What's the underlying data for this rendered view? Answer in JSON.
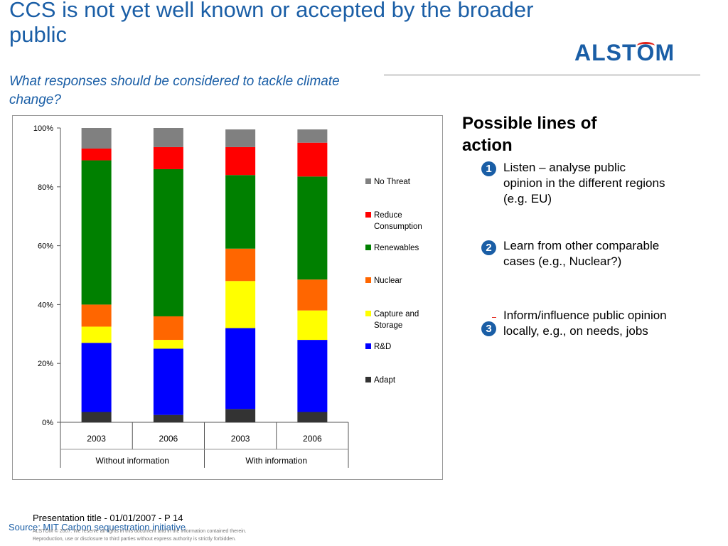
{
  "slide": {
    "title": "CCS is not yet well known or accepted by the broader public",
    "subtitle": "What responses should be considered to tackle climate change?",
    "logo_text": "ALSTOM",
    "accent_color": "#1a5ea6",
    "logo_arc_color": "#e2231a"
  },
  "side_panel": {
    "heading": "Possible lines of action",
    "actions": [
      {
        "number": "1",
        "text": "Listen – analyse public opinion in the different regions (e.g. EU)"
      },
      {
        "number": "2",
        "text": "Learn from other comparable cases (e.g., Nuclear?)"
      },
      {
        "number": "3",
        "text": "Inform/influence public opinion locally, e.g., on needs, jobs"
      }
    ]
  },
  "footer": {
    "presentation": "Presentation title - 01/01/2007 - P 14",
    "source": "Source: MIT Carbon sequestration initiative",
    "legal_line1": "ALSTOM © 2007. We reserve all rights in this document and in the information contained therein.",
    "legal_line2": "Reproduction, use or disclosure to third parties without express authority is strictly forbidden."
  },
  "chart_data": {
    "type": "bar",
    "stacked": true,
    "title": "",
    "xlabel": "",
    "ylabel": "",
    "ylim": [
      0,
      100
    ],
    "y_ticks": [
      "0%",
      "20%",
      "40%",
      "60%",
      "80%",
      "100%"
    ],
    "categories": [
      "2003",
      "2006",
      "2003",
      "2006"
    ],
    "groups": [
      {
        "label": "Without information",
        "categories": [
          0,
          1
        ]
      },
      {
        "label": "With information",
        "categories": [
          2,
          3
        ]
      }
    ],
    "grid": false,
    "legend_position": "right",
    "series": [
      {
        "name": "Adapt",
        "color": "#333333",
        "values": [
          3.5,
          2.5,
          4.5,
          3.5
        ]
      },
      {
        "name": "R&D",
        "color": "#0000ff",
        "values": [
          23.5,
          22.5,
          27.5,
          24.5
        ]
      },
      {
        "name": "Capture and Storage",
        "color": "#ffff00",
        "values": [
          5.5,
          3.0,
          16.0,
          10.0
        ]
      },
      {
        "name": "Nuclear",
        "color": "#ff6600",
        "values": [
          7.5,
          8.0,
          11.0,
          10.5
        ]
      },
      {
        "name": "Renewables",
        "color": "#008000",
        "values": [
          49.0,
          50.0,
          25.0,
          35.0
        ]
      },
      {
        "name": "Reduce Consumption",
        "color": "#ff0000",
        "values": [
          4.0,
          7.5,
          9.5,
          11.5
        ]
      },
      {
        "name": "No Threat",
        "color": "#808080",
        "values": [
          7.0,
          6.5,
          6.0,
          4.5
        ]
      }
    ]
  }
}
